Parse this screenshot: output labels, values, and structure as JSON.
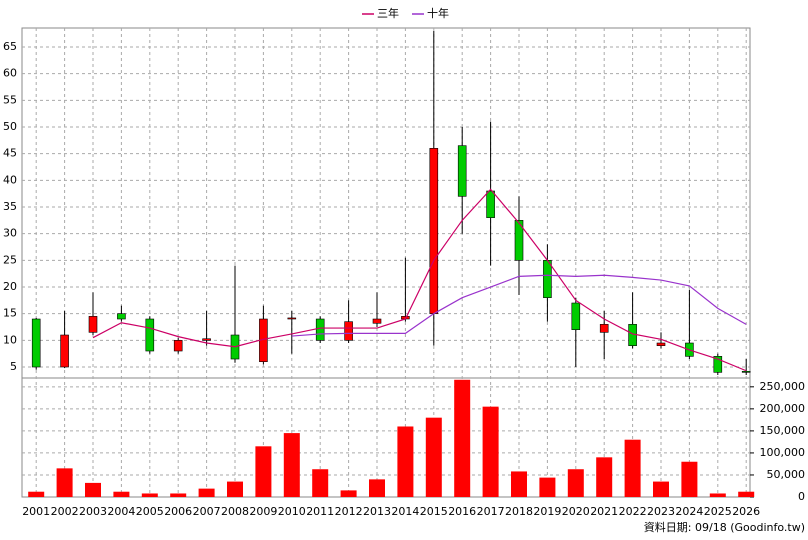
{
  "chart_data": [
    {
      "type": "candlestick",
      "categories": [
        "2001",
        "2002",
        "2003",
        "2004",
        "2005",
        "2006",
        "2007",
        "2008",
        "2009",
        "2010",
        "2011",
        "2012",
        "2013",
        "2014",
        "2015",
        "2016",
        "2017",
        "2018",
        "2019",
        "2020",
        "2021",
        "2022",
        "2023",
        "2024",
        "2025",
        "2026"
      ],
      "open": [
        14,
        5,
        11.5,
        15,
        14,
        8,
        10,
        11,
        6,
        14,
        14,
        10,
        13.2,
        14,
        15,
        46.5,
        38,
        32.5,
        25,
        17,
        11.5,
        13,
        9,
        9.5,
        7,
        4.2
      ],
      "high": [
        14.2,
        15.5,
        19,
        16.5,
        14.5,
        10.5,
        15.5,
        24,
        16.5,
        15.5,
        14.5,
        17.5,
        19,
        25.5,
        68,
        50,
        51,
        37,
        28,
        18,
        15.5,
        19,
        11.5,
        19.5,
        7.5,
        6.5
      ],
      "low": [
        4.5,
        4.8,
        11,
        13.5,
        7.5,
        7.5,
        9,
        5.8,
        5.5,
        7.5,
        9.5,
        9.5,
        12.5,
        13.5,
        9,
        30,
        24,
        18.5,
        13.5,
        5,
        6.5,
        8.5,
        8.5,
        6.5,
        3.5,
        3.5
      ],
      "close": [
        5,
        11,
        14.5,
        14,
        8,
        10,
        10.3,
        6.5,
        14,
        14.2,
        10,
        13.5,
        14,
        14.5,
        46,
        37,
        33,
        25,
        18,
        12,
        13,
        9,
        9.5,
        7,
        4,
        4
      ],
      "up_color": "#ff0000",
      "down_color": "#00cc00",
      "series": [
        {
          "name": "三年",
          "color": "#cc0066",
          "values": [
            null,
            null,
            10.5,
            13.3,
            12.3,
            10.7,
            9.5,
            8.8,
            10.2,
            11.2,
            12.3,
            12.3,
            12.3,
            14,
            25,
            32.5,
            38.3,
            32,
            25,
            17.5,
            14,
            11.2,
            10.2,
            8.2,
            6.5,
            4.3
          ]
        },
        {
          "name": "十年",
          "color": "#9933cc",
          "values": [
            null,
            null,
            null,
            null,
            null,
            null,
            null,
            null,
            null,
            10.8,
            11.2,
            11.3,
            11.3,
            11.3,
            15,
            18,
            20,
            22,
            22.2,
            22,
            22.2,
            21.8,
            21.3,
            20.2,
            16,
            13
          ]
        }
      ],
      "ylim": [
        2.94,
        68.56
      ],
      "yticks": [
        5,
        10,
        15,
        20,
        25,
        30,
        35,
        40,
        45,
        50,
        55,
        60,
        65
      ],
      "grid": true
    },
    {
      "type": "bar",
      "values": [
        12000,
        65000,
        32000,
        12000,
        8000,
        8000,
        19000,
        35000,
        115000,
        145000,
        63000,
        15000,
        40000,
        160000,
        180000,
        266000,
        205000,
        58000,
        44000,
        63000,
        90000,
        130000,
        35000,
        80000,
        8000,
        12000
      ],
      "color": "#ff0000",
      "ylim": [
        0,
        270000
      ],
      "yticks": [
        0,
        {
          "value": 50000,
          "label": "50,000"
        },
        {
          "value": 100000,
          "label": "100,000"
        },
        {
          "value": 150000,
          "label": "150,000"
        },
        {
          "value": 200000,
          "label": "200,000"
        },
        {
          "value": 250000,
          "label": "250,000"
        }
      ],
      "grid": true
    }
  ],
  "source": "資料日期: 09/18 (Goodinfo.tw)"
}
